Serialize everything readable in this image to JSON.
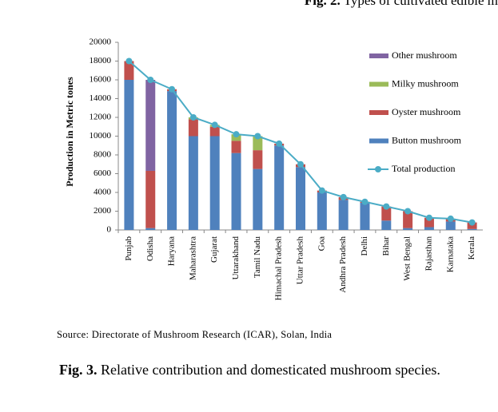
{
  "header": {
    "label": "Fig. 2.",
    "text": "Types of cultivated edible m"
  },
  "chart_data": {
    "type": "bar",
    "stacked": true,
    "y_label": "Production in Metric tones",
    "categories": [
      "Punjab",
      "Odisha",
      "Haryana",
      "Maharashtra",
      "Gujarat",
      "Uttarakhand",
      "Tamil Nadu",
      "Himachal Pradesh",
      "Uttar Pradesh",
      "Goa",
      "Andhra Pradesh",
      "Delhi",
      "Bihar",
      "West Bengal",
      "Rajasthan",
      "Karnataka",
      "Kerala"
    ],
    "series": [
      {
        "name": "Button mushroom",
        "color": "#4f81bd",
        "values": [
          16000,
          200,
          14800,
          10000,
          10000,
          8200,
          6500,
          9000,
          6700,
          4000,
          3200,
          2900,
          1000,
          200,
          300,
          900,
          100
        ]
      },
      {
        "name": "Oyster mushroom",
        "color": "#c0504d",
        "values": [
          2000,
          6100,
          200,
          1800,
          1000,
          1300,
          2000,
          200,
          300,
          200,
          300,
          100,
          1500,
          1800,
          1000,
          300,
          700
        ]
      },
      {
        "name": "Milky mushroom",
        "color": "#9bbb59",
        "values": [
          0,
          0,
          0,
          200,
          200,
          700,
          1500,
          0,
          0,
          0,
          0,
          0,
          0,
          0,
          0,
          0,
          0
        ]
      },
      {
        "name": "Other mushroom",
        "color": "#8064a2",
        "values": [
          0,
          9700,
          0,
          0,
          0,
          0,
          0,
          0,
          0,
          0,
          0,
          0,
          0,
          0,
          0,
          0,
          0
        ]
      },
      {
        "name": "Total production",
        "type": "line",
        "color": "#4bacc6",
        "values": [
          18000,
          16000,
          15000,
          12000,
          11200,
          10200,
          10000,
          9200,
          7000,
          4200,
          3500,
          3000,
          2500,
          2000,
          1300,
          1200,
          800
        ]
      }
    ],
    "ylim": [
      0,
      20000
    ],
    "yticks": [
      0,
      2000,
      4000,
      6000,
      8000,
      10000,
      12000,
      14000,
      16000,
      18000,
      20000
    ],
    "grid": false,
    "legend": "right"
  },
  "source": "Source: Directorate of Mushroom Research (ICAR), Solan, India",
  "caption": {
    "label": "Fig. 3.",
    "text": "Relative contribution and domesticated mushroom species."
  }
}
